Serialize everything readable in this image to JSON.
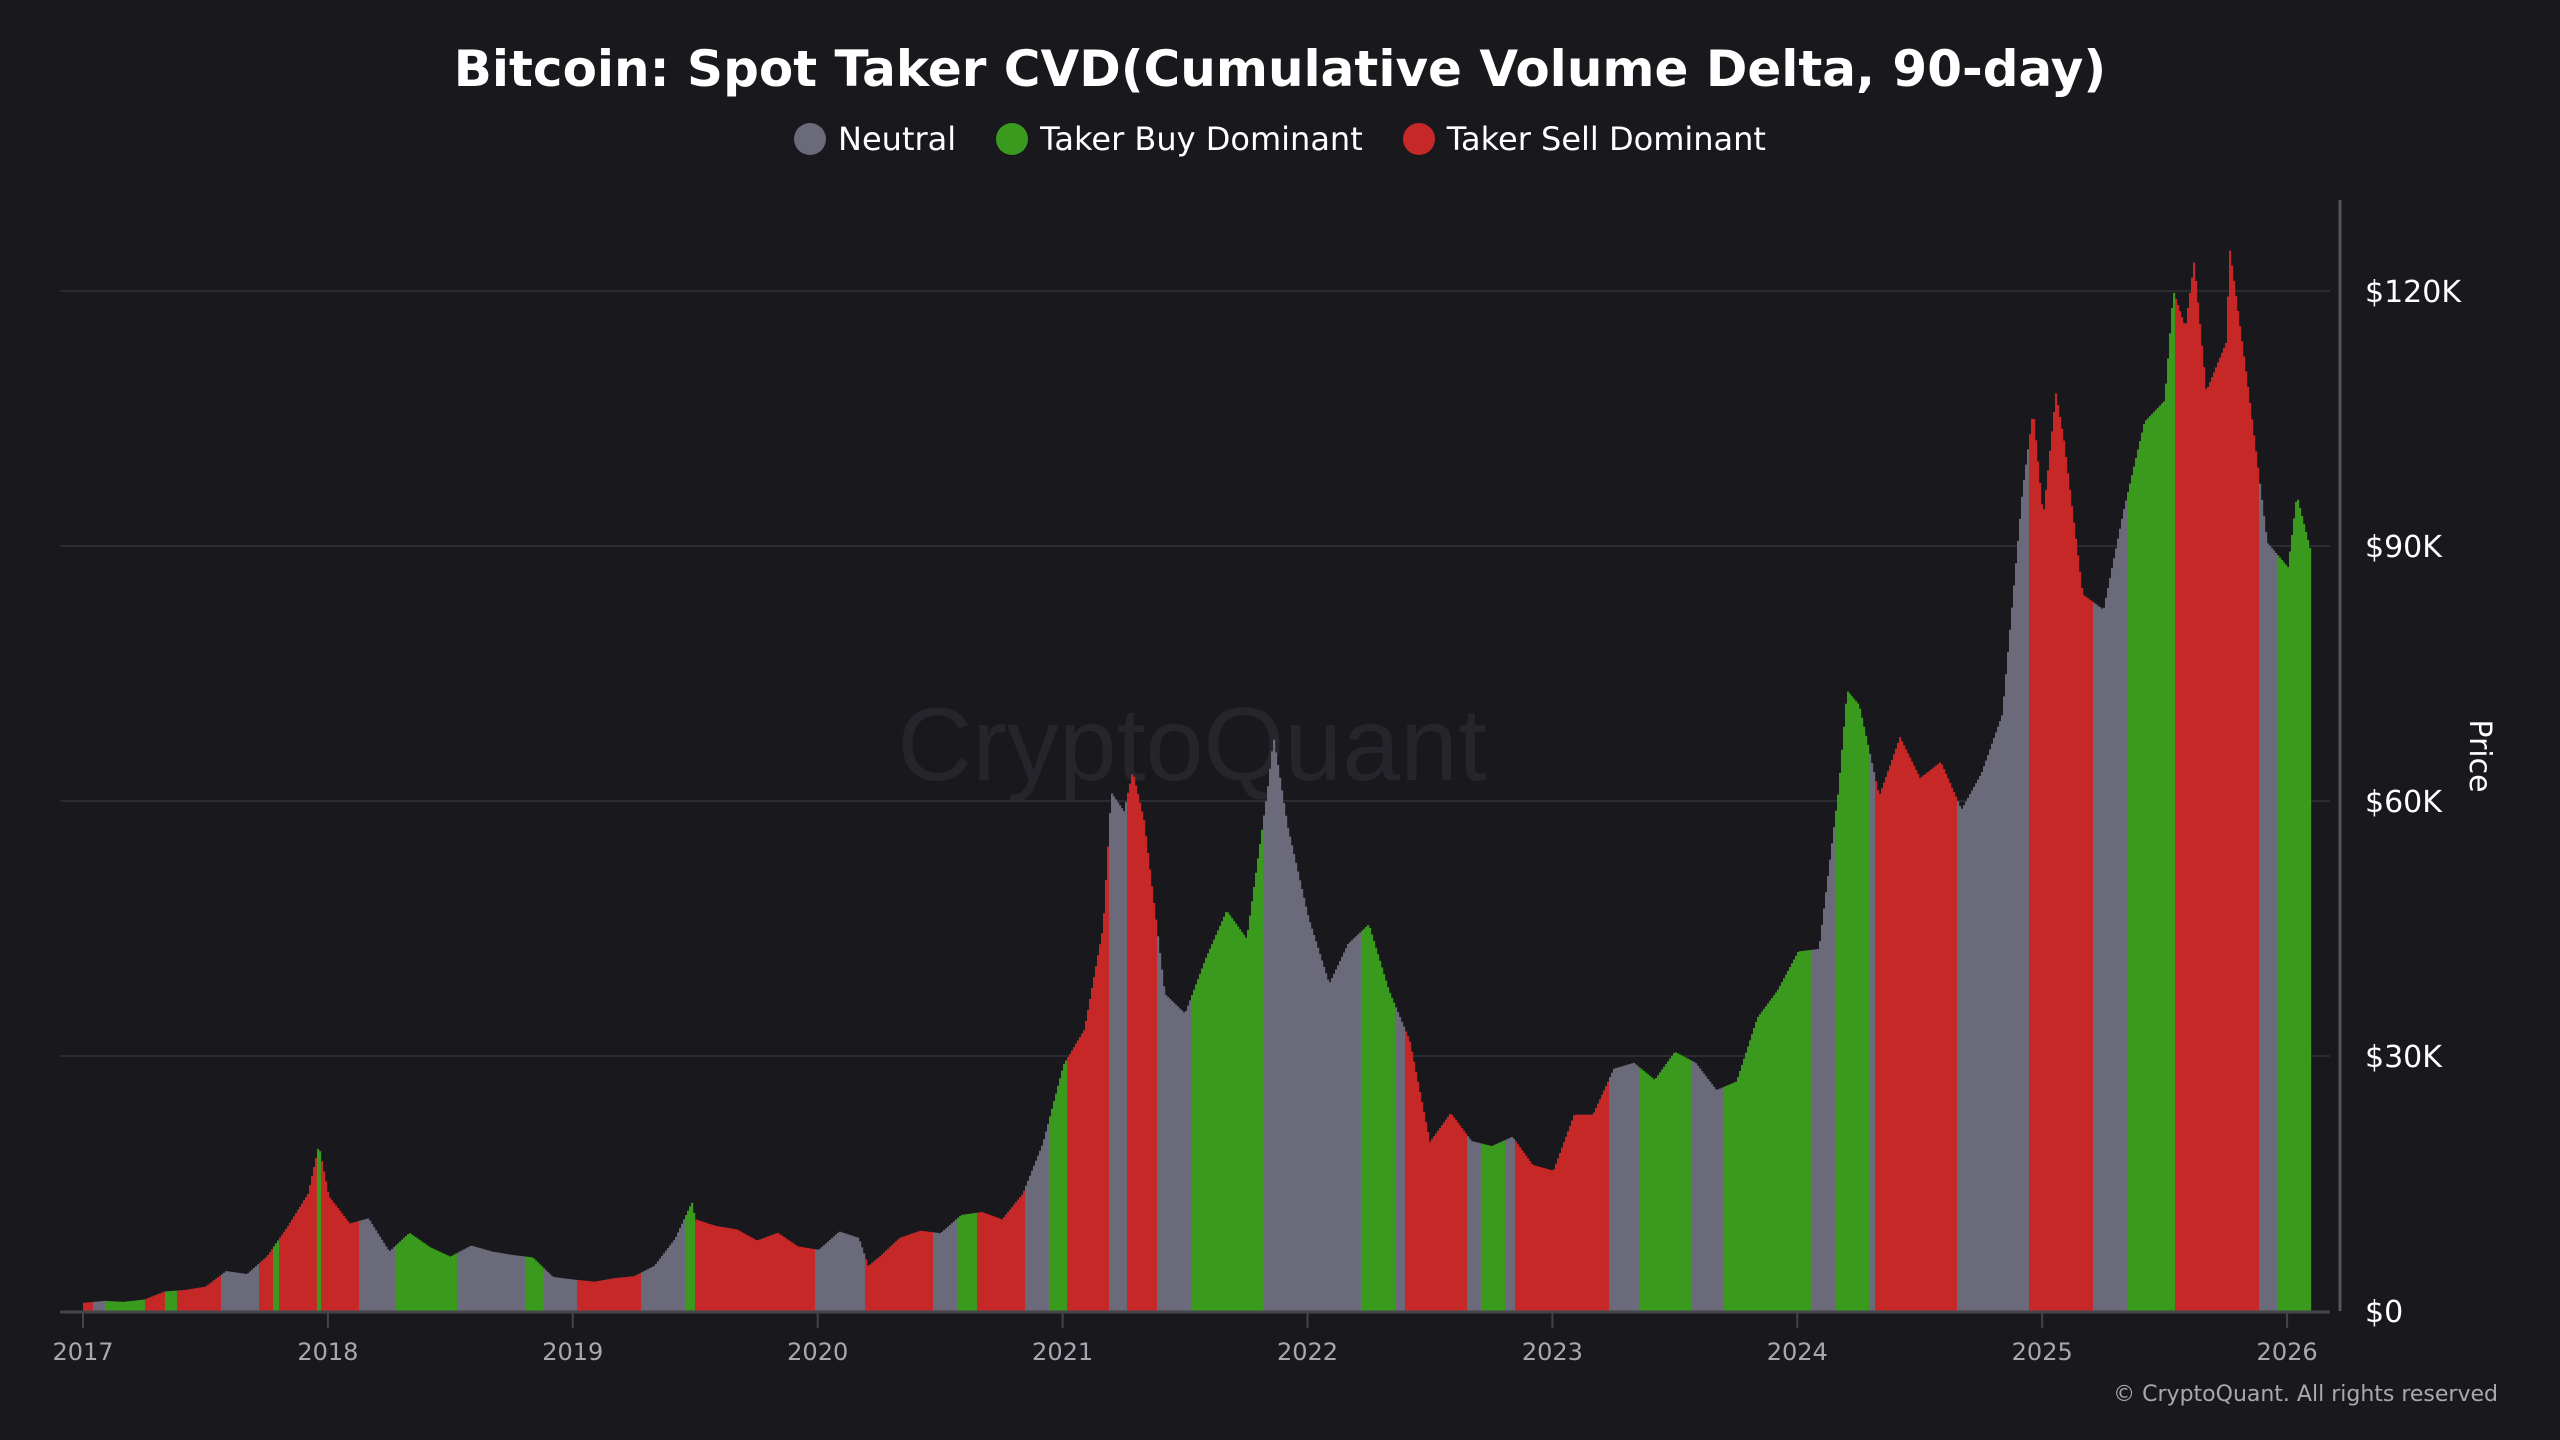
{
  "chart_data": {
    "type": "bar",
    "title": "Bitcoin: Spot Taker CVD(Cumulative Volume Delta, 90-day)",
    "ylabel": "Price",
    "ylim": [
      0,
      130000
    ],
    "yticks": [
      {
        "value": 0,
        "label": "$0"
      },
      {
        "value": 30000,
        "label": "$30K"
      },
      {
        "value": 60000,
        "label": "$60K"
      },
      {
        "value": 90000,
        "label": "$90K"
      },
      {
        "value": 120000,
        "label": "$120K"
      }
    ],
    "xticks": [
      "2017",
      "2018",
      "2019",
      "2020",
      "2021",
      "2022",
      "2023",
      "2024",
      "2025",
      "2026"
    ],
    "grid": true,
    "legend_placement": "top-center",
    "legend": [
      {
        "key": "neutral",
        "label": "Neutral",
        "color": "#6b6a7a"
      },
      {
        "key": "buy",
        "label": "Taker Buy Dominant",
        "color": "#3a9a1e"
      },
      {
        "key": "sell",
        "label": "Taker Sell Dominant",
        "color": "#c62828"
      }
    ],
    "price": [
      [
        "2017-01-01",
        970
      ],
      [
        "2017-02-01",
        1190
      ],
      [
        "2017-03-01",
        1080
      ],
      [
        "2017-04-01",
        1350
      ],
      [
        "2017-05-01",
        2300
      ],
      [
        "2017-06-01",
        2480
      ],
      [
        "2017-07-01",
        2870
      ],
      [
        "2017-08-01",
        4700
      ],
      [
        "2017-09-01",
        4340
      ],
      [
        "2017-10-01",
        6450
      ],
      [
        "2017-11-01",
        10000
      ],
      [
        "2017-12-01",
        13800
      ],
      [
        "2017-12-17",
        19500
      ],
      [
        "2018-01-01",
        13500
      ],
      [
        "2018-02-01",
        10300
      ],
      [
        "2018-03-01",
        10900
      ],
      [
        "2018-04-01",
        7000
      ],
      [
        "2018-05-01",
        9200
      ],
      [
        "2018-06-01",
        7500
      ],
      [
        "2018-07-01",
        6400
      ],
      [
        "2018-08-01",
        7700
      ],
      [
        "2018-09-01",
        7000
      ],
      [
        "2018-10-01",
        6600
      ],
      [
        "2018-11-01",
        6300
      ],
      [
        "2018-12-01",
        4000
      ],
      [
        "2019-01-01",
        3700
      ],
      [
        "2019-02-01",
        3450
      ],
      [
        "2019-03-01",
        3850
      ],
      [
        "2019-04-01",
        4100
      ],
      [
        "2019-05-01",
        5300
      ],
      [
        "2019-06-01",
        8500
      ],
      [
        "2019-06-26",
        12800
      ],
      [
        "2019-07-01",
        10800
      ],
      [
        "2019-08-01",
        10000
      ],
      [
        "2019-09-01",
        9600
      ],
      [
        "2019-10-01",
        8300
      ],
      [
        "2019-11-01",
        9200
      ],
      [
        "2019-12-01",
        7600
      ],
      [
        "2020-01-01",
        7200
      ],
      [
        "2020-02-01",
        9350
      ],
      [
        "2020-03-01",
        8600
      ],
      [
        "2020-03-15",
        5300
      ],
      [
        "2020-04-01",
        6400
      ],
      [
        "2020-05-01",
        8600
      ],
      [
        "2020-06-01",
        9450
      ],
      [
        "2020-07-01",
        9150
      ],
      [
        "2020-08-01",
        11300
      ],
      [
        "2020-09-01",
        11650
      ],
      [
        "2020-10-01",
        10780
      ],
      [
        "2020-11-01",
        13800
      ],
      [
        "2020-12-01",
        19700
      ],
      [
        "2021-01-01",
        29000
      ],
      [
        "2021-02-01",
        33100
      ],
      [
        "2021-03-01",
        45200
      ],
      [
        "2021-03-13",
        61000
      ],
      [
        "2021-04-01",
        58800
      ],
      [
        "2021-04-14",
        63500
      ],
      [
        "2021-05-01",
        57700
      ],
      [
        "2021-06-01",
        37300
      ],
      [
        "2021-07-01",
        35000
      ],
      [
        "2021-08-01",
        41500
      ],
      [
        "2021-09-01",
        47100
      ],
      [
        "2021-10-01",
        43800
      ],
      [
        "2021-11-01",
        61300
      ],
      [
        "2021-11-10",
        67500
      ],
      [
        "2021-12-01",
        57000
      ],
      [
        "2022-01-01",
        46300
      ],
      [
        "2022-02-01",
        38500
      ],
      [
        "2022-03-01",
        43200
      ],
      [
        "2022-04-01",
        45500
      ],
      [
        "2022-05-01",
        37700
      ],
      [
        "2022-06-01",
        31800
      ],
      [
        "2022-07-01",
        19900
      ],
      [
        "2022-08-01",
        23300
      ],
      [
        "2022-09-01",
        20000
      ],
      [
        "2022-10-01",
        19400
      ],
      [
        "2022-11-01",
        20500
      ],
      [
        "2022-12-01",
        17200
      ],
      [
        "2023-01-01",
        16500
      ],
      [
        "2023-02-01",
        23100
      ],
      [
        "2023-03-01",
        23100
      ],
      [
        "2023-04-01",
        28500
      ],
      [
        "2023-05-01",
        29200
      ],
      [
        "2023-06-01",
        27200
      ],
      [
        "2023-07-01",
        30500
      ],
      [
        "2023-08-01",
        29200
      ],
      [
        "2023-09-01",
        26000
      ],
      [
        "2023-10-01",
        27000
      ],
      [
        "2023-11-01",
        34500
      ],
      [
        "2023-12-01",
        37700
      ],
      [
        "2024-01-01",
        42300
      ],
      [
        "2024-02-01",
        42600
      ],
      [
        "2024-03-01",
        61200
      ],
      [
        "2024-03-14",
        73000
      ],
      [
        "2024-04-01",
        71300
      ],
      [
        "2024-05-01",
        60600
      ],
      [
        "2024-06-01",
        67500
      ],
      [
        "2024-07-01",
        62700
      ],
      [
        "2024-08-01",
        64600
      ],
      [
        "2024-09-01",
        59000
      ],
      [
        "2024-10-01",
        63300
      ],
      [
        "2024-11-01",
        70200
      ],
      [
        "2024-12-01",
        96400
      ],
      [
        "2024-12-17",
        106000
      ],
      [
        "2025-01-01",
        93400
      ],
      [
        "2025-01-20",
        108000
      ],
      [
        "2025-02-01",
        102400
      ],
      [
        "2025-03-01",
        84300
      ],
      [
        "2025-04-01",
        82500
      ],
      [
        "2025-05-01",
        94200
      ],
      [
        "2025-06-01",
        104600
      ],
      [
        "2025-07-01",
        107100
      ],
      [
        "2025-07-14",
        120000
      ],
      [
        "2025-08-01",
        115700
      ],
      [
        "2025-08-14",
        123500
      ],
      [
        "2025-09-01",
        108200
      ],
      [
        "2025-10-01",
        114000
      ],
      [
        "2025-10-06",
        125000
      ],
      [
        "2025-11-01",
        109500
      ],
      [
        "2025-12-01",
        90400
      ],
      [
        "2026-01-01",
        87500
      ],
      [
        "2026-01-14",
        96000
      ],
      [
        "2026-02-05",
        89000
      ]
    ],
    "regimes": [
      [
        "2017-01-01",
        "2017-01-15",
        "sell"
      ],
      [
        "2017-01-15",
        "2017-02-01",
        "neutral"
      ],
      [
        "2017-02-01",
        "2017-04-01",
        "buy"
      ],
      [
        "2017-04-01",
        "2017-05-01",
        "sell"
      ],
      [
        "2017-05-01",
        "2017-05-20",
        "buy"
      ],
      [
        "2017-05-20",
        "2017-07-25",
        "sell"
      ],
      [
        "2017-07-25",
        "2017-09-20",
        "neutral"
      ],
      [
        "2017-09-20",
        "2017-10-10",
        "sell"
      ],
      [
        "2017-10-10",
        "2017-10-20",
        "buy"
      ],
      [
        "2017-10-20",
        "2017-12-15",
        "sell"
      ],
      [
        "2017-12-15",
        "2017-12-20",
        "buy"
      ],
      [
        "2017-12-20",
        "2018-02-15",
        "sell"
      ],
      [
        "2018-02-15",
        "2018-04-10",
        "neutral"
      ],
      [
        "2018-04-10",
        "2018-07-10",
        "buy"
      ],
      [
        "2018-07-10",
        "2018-10-20",
        "neutral"
      ],
      [
        "2018-10-20",
        "2018-11-15",
        "buy"
      ],
      [
        "2018-11-15",
        "2019-01-05",
        "neutral"
      ],
      [
        "2019-01-05",
        "2019-04-10",
        "sell"
      ],
      [
        "2019-04-10",
        "2019-06-15",
        "neutral"
      ],
      [
        "2019-06-15",
        "2019-06-30",
        "buy"
      ],
      [
        "2019-06-30",
        "2019-12-25",
        "sell"
      ],
      [
        "2019-12-25",
        "2020-03-10",
        "neutral"
      ],
      [
        "2020-03-10",
        "2020-06-20",
        "sell"
      ],
      [
        "2020-06-20",
        "2020-07-25",
        "neutral"
      ],
      [
        "2020-07-25",
        "2020-08-25",
        "buy"
      ],
      [
        "2020-08-25",
        "2020-11-05",
        "sell"
      ],
      [
        "2020-11-05",
        "2020-12-10",
        "neutral"
      ],
      [
        "2020-12-10",
        "2021-01-05",
        "buy"
      ],
      [
        "2021-01-05",
        "2021-03-10",
        "sell"
      ],
      [
        "2021-03-10",
        "2021-04-05",
        "neutral"
      ],
      [
        "2021-04-05",
        "2021-05-20",
        "sell"
      ],
      [
        "2021-05-20",
        "2021-07-10",
        "neutral"
      ],
      [
        "2021-07-10",
        "2021-10-25",
        "buy"
      ],
      [
        "2021-10-25",
        "2022-03-20",
        "neutral"
      ],
      [
        "2022-03-20",
        "2022-05-10",
        "buy"
      ],
      [
        "2022-05-10",
        "2022-05-25",
        "neutral"
      ],
      [
        "2022-05-25",
        "2022-08-25",
        "sell"
      ],
      [
        "2022-08-25",
        "2022-09-15",
        "neutral"
      ],
      [
        "2022-09-15",
        "2022-10-20",
        "buy"
      ],
      [
        "2022-10-20",
        "2022-11-05",
        "neutral"
      ],
      [
        "2022-11-05",
        "2023-03-25",
        "sell"
      ],
      [
        "2023-03-25",
        "2023-05-10",
        "neutral"
      ],
      [
        "2023-05-10",
        "2023-07-25",
        "buy"
      ],
      [
        "2023-07-25",
        "2023-09-10",
        "neutral"
      ],
      [
        "2023-09-10",
        "2024-01-20",
        "buy"
      ],
      [
        "2024-01-20",
        "2024-02-25",
        "neutral"
      ],
      [
        "2024-02-25",
        "2024-04-15",
        "buy"
      ],
      [
        "2024-04-15",
        "2024-04-25",
        "neutral"
      ],
      [
        "2024-04-25",
        "2024-08-25",
        "sell"
      ],
      [
        "2024-08-25",
        "2024-12-10",
        "neutral"
      ],
      [
        "2024-12-10",
        "2025-03-15",
        "sell"
      ],
      [
        "2025-03-15",
        "2025-05-05",
        "neutral"
      ],
      [
        "2025-05-05",
        "2025-07-15",
        "buy"
      ],
      [
        "2025-07-15",
        "2025-11-20",
        "sell"
      ],
      [
        "2025-11-20",
        "2025-12-15",
        "neutral"
      ],
      [
        "2025-12-15",
        "2026-02-05",
        "buy"
      ]
    ],
    "watermark": "CryptoQuant"
  },
  "copyright": "© CryptoQuant. All rights reserved"
}
